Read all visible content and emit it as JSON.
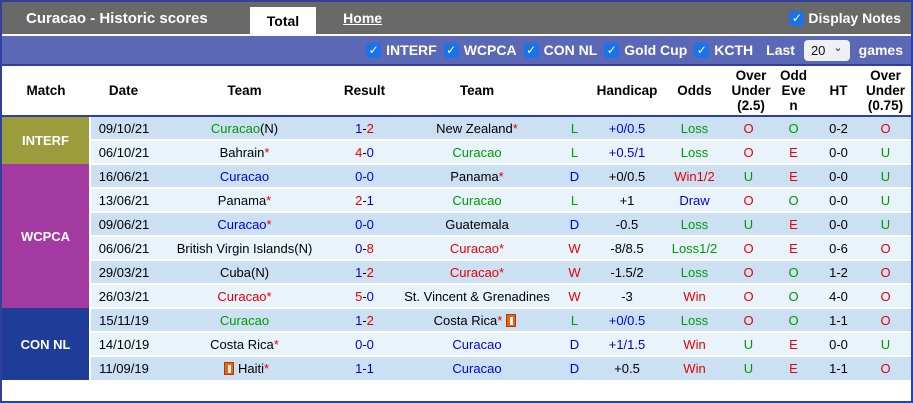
{
  "header": {
    "title": "Curacao - Historic scores",
    "tabs": [
      {
        "label": "Total",
        "active": true
      },
      {
        "label": "Home",
        "active": false
      }
    ],
    "display_notes_label": "Display Notes",
    "display_notes_checked": true
  },
  "filters": {
    "competitions": [
      {
        "label": "INTERF",
        "checked": true
      },
      {
        "label": "WCPCA",
        "checked": true
      },
      {
        "label": "CON NL",
        "checked": true
      },
      {
        "label": "Gold Cup",
        "checked": true
      },
      {
        "label": "KCTH",
        "checked": true
      }
    ],
    "last_label": "Last",
    "games_count": "20",
    "games_label": "games"
  },
  "competition_colors": {
    "INTERF": "#9b9c3c",
    "WCPCA": "#a23aa2",
    "CON NL": "#1f3c99"
  },
  "text_colors": {
    "green": "#009900",
    "red": "#e60000",
    "blue": "#0000dd",
    "black": "#000000"
  },
  "table": {
    "columns": [
      "Match",
      "Date",
      "Team",
      "Result",
      "Team",
      "",
      "Handicap",
      "Odds",
      "Over Under (2.5)",
      "Odd Even",
      "HT",
      "Over Under (0.75)"
    ],
    "rows": [
      {
        "comp": "INTERF",
        "date": "09/10/21",
        "home": {
          "name": "Curacao",
          "color": "green",
          "suffix": "(N)",
          "suffix_color": "black"
        },
        "result": {
          "home": "1",
          "home_color": "blue",
          "away": "2",
          "away_color": "red"
        },
        "away": {
          "name": "New Zealand",
          "color": "black",
          "suffix": "*",
          "suffix_color": "red"
        },
        "ldw": {
          "text": "L",
          "color": "green"
        },
        "handicap": {
          "text": "+0/0.5",
          "color": "blue"
        },
        "odds": {
          "text": "Loss",
          "color": "green"
        },
        "ou25": {
          "text": "O",
          "color": "red"
        },
        "oe": {
          "text": "O",
          "color": "green"
        },
        "ht": "0-2",
        "ou075": {
          "text": "O",
          "color": "red"
        }
      },
      {
        "comp": "INTERF",
        "date": "06/10/21",
        "home": {
          "name": "Bahrain",
          "color": "black",
          "suffix": "*",
          "suffix_color": "red"
        },
        "result": {
          "home": "4",
          "home_color": "red",
          "away": "0",
          "away_color": "blue"
        },
        "away": {
          "name": "Curacao",
          "color": "green"
        },
        "ldw": {
          "text": "L",
          "color": "green"
        },
        "handicap": {
          "text": "+0.5/1",
          "color": "blue"
        },
        "odds": {
          "text": "Loss",
          "color": "green"
        },
        "ou25": {
          "text": "O",
          "color": "red"
        },
        "oe": {
          "text": "E",
          "color": "red"
        },
        "ht": "0-0",
        "ou075": {
          "text": "U",
          "color": "green"
        }
      },
      {
        "comp": "WCPCA",
        "date": "16/06/21",
        "home": {
          "name": "Curacao",
          "color": "blue"
        },
        "result": {
          "home": "0",
          "home_color": "blue",
          "away": "0",
          "away_color": "blue"
        },
        "away": {
          "name": "Panama",
          "color": "black",
          "suffix": "*",
          "suffix_color": "red"
        },
        "ldw": {
          "text": "D",
          "color": "blue"
        },
        "handicap": {
          "text": "+0/0.5",
          "color": "black"
        },
        "odds": {
          "text": "Win1/2",
          "color": "red"
        },
        "ou25": {
          "text": "U",
          "color": "green"
        },
        "oe": {
          "text": "E",
          "color": "red"
        },
        "ht": "0-0",
        "ou075": {
          "text": "U",
          "color": "green"
        }
      },
      {
        "comp": "WCPCA",
        "date": "13/06/21",
        "home": {
          "name": "Panama",
          "color": "black",
          "suffix": "*",
          "suffix_color": "red"
        },
        "result": {
          "home": "2",
          "home_color": "red",
          "away": "1",
          "away_color": "blue"
        },
        "away": {
          "name": "Curacao",
          "color": "green"
        },
        "ldw": {
          "text": "L",
          "color": "green"
        },
        "handicap": {
          "text": "+1",
          "color": "black"
        },
        "odds": {
          "text": "Draw",
          "color": "blue"
        },
        "ou25": {
          "text": "O",
          "color": "red"
        },
        "oe": {
          "text": "O",
          "color": "green"
        },
        "ht": "0-0",
        "ou075": {
          "text": "U",
          "color": "green"
        }
      },
      {
        "comp": "WCPCA",
        "date": "09/06/21",
        "home": {
          "name": "Curacao",
          "color": "blue",
          "suffix": "*",
          "suffix_color": "red"
        },
        "result": {
          "home": "0",
          "home_color": "blue",
          "away": "0",
          "away_color": "blue"
        },
        "away": {
          "name": "Guatemala",
          "color": "black"
        },
        "ldw": {
          "text": "D",
          "color": "blue"
        },
        "handicap": {
          "text": "-0.5",
          "color": "black"
        },
        "odds": {
          "text": "Loss",
          "color": "green"
        },
        "ou25": {
          "text": "U",
          "color": "green"
        },
        "oe": {
          "text": "E",
          "color": "red"
        },
        "ht": "0-0",
        "ou075": {
          "text": "U",
          "color": "green"
        }
      },
      {
        "comp": "WCPCA",
        "date": "06/06/21",
        "home": {
          "name": "British Virgin Islands",
          "color": "black",
          "suffix": "(N)",
          "suffix_color": "black"
        },
        "result": {
          "home": "0",
          "home_color": "blue",
          "away": "8",
          "away_color": "red"
        },
        "away": {
          "name": "Curacao",
          "color": "red",
          "suffix": "*",
          "suffix_color": "red"
        },
        "ldw": {
          "text": "W",
          "color": "red"
        },
        "handicap": {
          "text": "-8/8.5",
          "color": "black"
        },
        "odds": {
          "text": "Loss1/2",
          "color": "green"
        },
        "ou25": {
          "text": "O",
          "color": "red"
        },
        "oe": {
          "text": "E",
          "color": "red"
        },
        "ht": "0-6",
        "ou075": {
          "text": "O",
          "color": "red"
        }
      },
      {
        "comp": "WCPCA",
        "date": "29/03/21",
        "home": {
          "name": "Cuba",
          "color": "black",
          "suffix": "(N)",
          "suffix_color": "black"
        },
        "result": {
          "home": "1",
          "home_color": "blue",
          "away": "2",
          "away_color": "red"
        },
        "away": {
          "name": "Curacao",
          "color": "red",
          "suffix": "*",
          "suffix_color": "red"
        },
        "ldw": {
          "text": "W",
          "color": "red"
        },
        "handicap": {
          "text": "-1.5/2",
          "color": "black"
        },
        "odds": {
          "text": "Loss",
          "color": "green"
        },
        "ou25": {
          "text": "O",
          "color": "red"
        },
        "oe": {
          "text": "O",
          "color": "green"
        },
        "ht": "1-2",
        "ou075": {
          "text": "O",
          "color": "red"
        }
      },
      {
        "comp": "WCPCA",
        "date": "26/03/21",
        "home": {
          "name": "Curacao",
          "color": "red",
          "suffix": "*",
          "suffix_color": "red"
        },
        "result": {
          "home": "5",
          "home_color": "red",
          "away": "0",
          "away_color": "blue"
        },
        "away": {
          "name": "St. Vincent & Grenadines",
          "color": "black"
        },
        "ldw": {
          "text": "W",
          "color": "red"
        },
        "handicap": {
          "text": "-3",
          "color": "black"
        },
        "odds": {
          "text": "Win",
          "color": "red"
        },
        "ou25": {
          "text": "O",
          "color": "red"
        },
        "oe": {
          "text": "O",
          "color": "green"
        },
        "ht": "4-0",
        "ou075": {
          "text": "O",
          "color": "red"
        }
      },
      {
        "comp": "CON NL",
        "date": "15/11/19",
        "home": {
          "name": "Curacao",
          "color": "green"
        },
        "result": {
          "home": "1",
          "home_color": "blue",
          "away": "2",
          "away_color": "red"
        },
        "away": {
          "name": "Costa Rica",
          "color": "black",
          "suffix": "*",
          "suffix_color": "red",
          "note_icon": "after"
        },
        "ldw": {
          "text": "L",
          "color": "green"
        },
        "handicap": {
          "text": "+0/0.5",
          "color": "blue"
        },
        "odds": {
          "text": "Loss",
          "color": "green"
        },
        "ou25": {
          "text": "O",
          "color": "red"
        },
        "oe": {
          "text": "O",
          "color": "green"
        },
        "ht": "1-1",
        "ou075": {
          "text": "O",
          "color": "red"
        }
      },
      {
        "comp": "CON NL",
        "date": "14/10/19",
        "home": {
          "name": "Costa Rica",
          "color": "black",
          "suffix": "*",
          "suffix_color": "red"
        },
        "result": {
          "home": "0",
          "home_color": "blue",
          "away": "0",
          "away_color": "blue"
        },
        "away": {
          "name": "Curacao",
          "color": "blue"
        },
        "ldw": {
          "text": "D",
          "color": "blue"
        },
        "handicap": {
          "text": "+1/1.5",
          "color": "blue"
        },
        "odds": {
          "text": "Win",
          "color": "red"
        },
        "ou25": {
          "text": "U",
          "color": "green"
        },
        "oe": {
          "text": "E",
          "color": "red"
        },
        "ht": "0-0",
        "ou075": {
          "text": "U",
          "color": "green"
        }
      },
      {
        "comp": "CON NL",
        "date": "11/09/19",
        "home": {
          "name": "Haiti",
          "color": "black",
          "suffix": "*",
          "suffix_color": "red",
          "note_icon": "before"
        },
        "result": {
          "home": "1",
          "home_color": "blue",
          "away": "1",
          "away_color": "blue"
        },
        "away": {
          "name": "Curacao",
          "color": "blue"
        },
        "ldw": {
          "text": "D",
          "color": "blue"
        },
        "handicap": {
          "text": "+0.5",
          "color": "black"
        },
        "odds": {
          "text": "Win",
          "color": "red"
        },
        "ou25": {
          "text": "U",
          "color": "green"
        },
        "oe": {
          "text": "E",
          "color": "red"
        },
        "ht": "1-1",
        "ou075": {
          "text": "O",
          "color": "red"
        }
      }
    ]
  }
}
